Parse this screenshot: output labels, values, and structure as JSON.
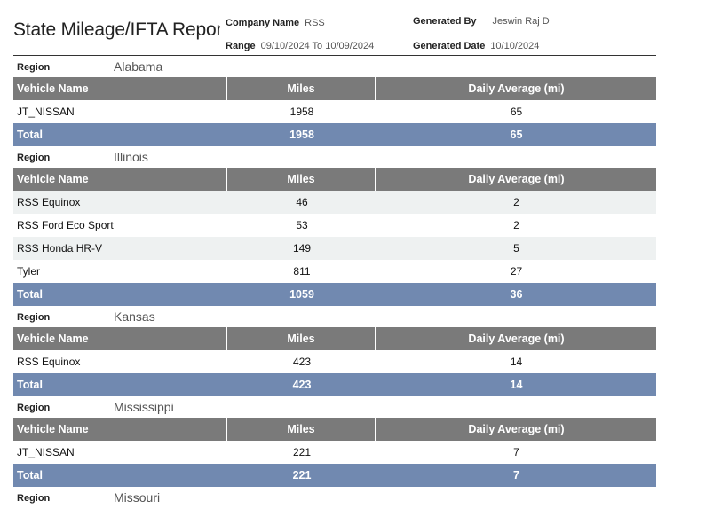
{
  "report": {
    "title": "State Mileage/IFTA Report",
    "company_label": "Company Name",
    "company_value": "RSS",
    "range_label": "Range",
    "range_value": "09/10/2024 To 10/09/2024",
    "generated_by_label": "Generated By",
    "generated_by_value": "Jeswin Raj D",
    "generated_date_label": "Generated Date",
    "generated_date_value": "10/10/2024"
  },
  "columns": [
    "Vehicle Name",
    "Miles",
    "Daily Average (mi)"
  ],
  "region_label": "Region",
  "total_label": "Total",
  "regions": [
    {
      "name": "Alabama",
      "rows": [
        {
          "vehicle": "JT_NISSAN",
          "miles": "1958",
          "daily_avg": "65"
        }
      ],
      "total": {
        "miles": "1958",
        "daily_avg": "65"
      }
    },
    {
      "name": "Illinois",
      "rows": [
        {
          "vehicle": "RSS Equinox",
          "miles": "46",
          "daily_avg": "2"
        },
        {
          "vehicle": "RSS Ford Eco Sport",
          "miles": "53",
          "daily_avg": "2"
        },
        {
          "vehicle": "RSS Honda HR-V",
          "miles": "149",
          "daily_avg": "5"
        },
        {
          "vehicle": "Tyler",
          "miles": "811",
          "daily_avg": "27"
        }
      ],
      "total": {
        "miles": "1059",
        "daily_avg": "36"
      }
    },
    {
      "name": "Kansas",
      "rows": [
        {
          "vehicle": "RSS Equinox",
          "miles": "423",
          "daily_avg": "14"
        }
      ],
      "total": {
        "miles": "423",
        "daily_avg": "14"
      }
    },
    {
      "name": "Mississippi",
      "rows": [
        {
          "vehicle": "JT_NISSAN",
          "miles": "221",
          "daily_avg": "7"
        }
      ],
      "total": {
        "miles": "221",
        "daily_avg": "7"
      }
    },
    {
      "name": "Missouri",
      "rows": [],
      "total": null
    }
  ]
}
